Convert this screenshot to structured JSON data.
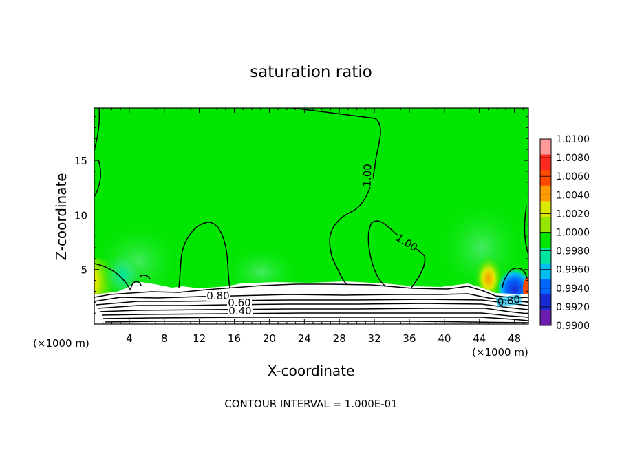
{
  "chart_data": {
    "type": "heatmap",
    "title": "saturation ratio",
    "xlabel": "X-coordinate",
    "ylabel": "Z-coordinate",
    "x_unit_left": "(×1000 m)",
    "x_unit_right": "(×1000 m)",
    "xlim": [
      0,
      49.6
    ],
    "ylim": [
      0,
      19.8
    ],
    "x_ticks": [
      "4",
      "8",
      "12",
      "16",
      "20",
      "24",
      "28",
      "32",
      "36",
      "40",
      "44",
      "48"
    ],
    "y_ticks": [
      "5",
      "10",
      "15"
    ],
    "colorbar": {
      "labels": [
        "1.0100",
        "1.0080",
        "1.0060",
        "1.0040",
        "1.0020",
        "1.0000",
        "0.9980",
        "0.9960",
        "0.9940",
        "0.9920",
        "0.9900"
      ],
      "colors": [
        "#ff9a9a",
        "#ff2a1e",
        "#ff4a00",
        "#ff9a00",
        "#dcea00",
        "#96e600",
        "#00e600",
        "#00e6a0",
        "#00bff0",
        "#0066ff",
        "#1a2ad2",
        "#6a1fb0"
      ]
    },
    "contour_labels": [
      "1.00",
      "1.00",
      "0.80",
      "0.60",
      "0.40",
      "0.80"
    ],
    "contour_interval": "CONTOUR INTERVAL = 1.000E-01",
    "background_color": "#00e600"
  }
}
